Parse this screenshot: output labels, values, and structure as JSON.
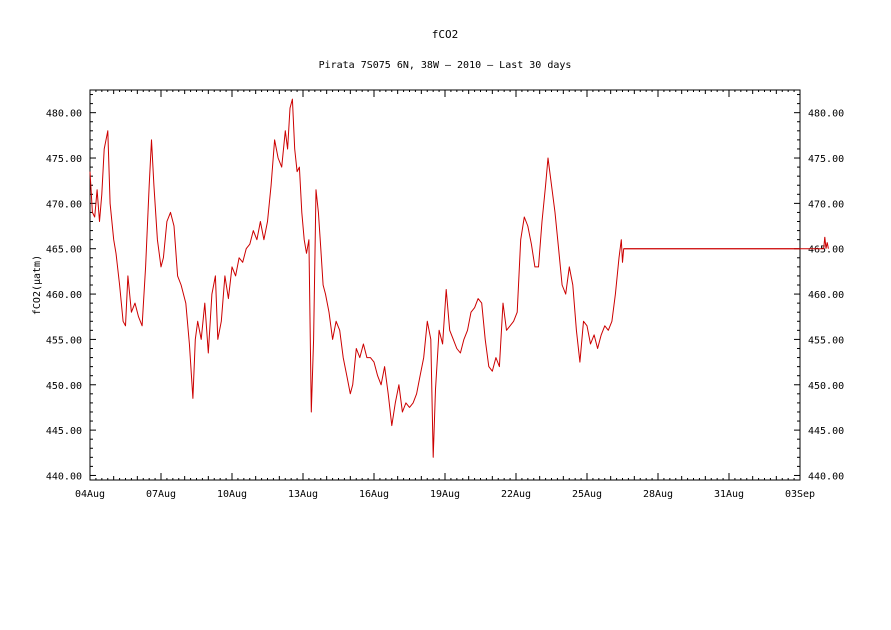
{
  "chart_data": {
    "type": "line",
    "title": "fCO2",
    "subtitle": "Pirata 7S075 6N, 38W – 2010 – Last 30 days",
    "ylabel": "fCO2(μatm)",
    "xlabel": "",
    "x_ticks": [
      "04Aug",
      "07Aug",
      "10Aug",
      "13Aug",
      "16Aug",
      "19Aug",
      "22Aug",
      "25Aug",
      "28Aug",
      "31Aug",
      "03Sep"
    ],
    "x_range_days": [
      0,
      30
    ],
    "y_ticks": [
      "440.00",
      "445.00",
      "450.00",
      "455.00",
      "460.00",
      "465.00",
      "470.00",
      "475.00",
      "480.00"
    ],
    "ylim": [
      439.5,
      482.5
    ],
    "line_color": "#cc0000",
    "series": [
      {
        "points": [
          [
            0.0,
            473.5
          ],
          [
            0.1,
            469.0
          ],
          [
            0.2,
            468.5
          ],
          [
            0.3,
            471.5
          ],
          [
            0.4,
            468.0
          ],
          [
            0.5,
            471.0
          ],
          [
            0.6,
            476.0
          ],
          [
            0.75,
            478.0
          ],
          [
            0.85,
            470.0
          ],
          [
            1.0,
            466.0
          ],
          [
            1.1,
            464.5
          ],
          [
            1.25,
            461.0
          ],
          [
            1.4,
            457.0
          ],
          [
            1.5,
            456.5
          ],
          [
            1.6,
            462.0
          ],
          [
            1.75,
            458.0
          ],
          [
            1.9,
            459.0
          ],
          [
            2.05,
            457.5
          ],
          [
            2.2,
            456.5
          ],
          [
            2.35,
            463.0
          ],
          [
            2.5,
            472.0
          ],
          [
            2.6,
            477.0
          ],
          [
            2.7,
            472.0
          ],
          [
            2.85,
            466.0
          ],
          [
            3.0,
            463.0
          ],
          [
            3.1,
            464.0
          ],
          [
            3.25,
            468.0
          ],
          [
            3.4,
            469.0
          ],
          [
            3.55,
            467.5
          ],
          [
            3.7,
            462.0
          ],
          [
            3.85,
            461.0
          ],
          [
            4.05,
            459.0
          ],
          [
            4.2,
            454.5
          ],
          [
            4.35,
            448.5
          ],
          [
            4.45,
            455.0
          ],
          [
            4.55,
            457.0
          ],
          [
            4.7,
            455.0
          ],
          [
            4.85,
            459.0
          ],
          [
            5.0,
            453.5
          ],
          [
            5.15,
            460.0
          ],
          [
            5.3,
            462.0
          ],
          [
            5.4,
            455.0
          ],
          [
            5.55,
            457.0
          ],
          [
            5.7,
            462.0
          ],
          [
            5.85,
            459.5
          ],
          [
            6.0,
            463.0
          ],
          [
            6.15,
            462.0
          ],
          [
            6.3,
            464.0
          ],
          [
            6.45,
            463.5
          ],
          [
            6.6,
            465.0
          ],
          [
            6.75,
            465.5
          ],
          [
            6.9,
            467.0
          ],
          [
            7.05,
            466.0
          ],
          [
            7.2,
            468.0
          ],
          [
            7.35,
            466.0
          ],
          [
            7.5,
            468.0
          ],
          [
            7.65,
            472.0
          ],
          [
            7.8,
            477.0
          ],
          [
            7.95,
            475.0
          ],
          [
            8.1,
            474.0
          ],
          [
            8.25,
            478.0
          ],
          [
            8.35,
            476.0
          ],
          [
            8.45,
            480.5
          ],
          [
            8.55,
            481.5
          ],
          [
            8.65,
            476.0
          ],
          [
            8.75,
            473.5
          ],
          [
            8.85,
            474.0
          ],
          [
            8.95,
            469.0
          ],
          [
            9.05,
            466.0
          ],
          [
            9.15,
            464.5
          ],
          [
            9.25,
            466.0
          ],
          [
            9.35,
            447.0
          ],
          [
            9.45,
            455.0
          ],
          [
            9.55,
            471.5
          ],
          [
            9.65,
            469.0
          ],
          [
            9.75,
            465.0
          ],
          [
            9.85,
            461.0
          ],
          [
            9.95,
            460.0
          ],
          [
            10.1,
            458.0
          ],
          [
            10.25,
            455.0
          ],
          [
            10.4,
            457.0
          ],
          [
            10.55,
            456.0
          ],
          [
            10.7,
            453.0
          ],
          [
            10.85,
            451.0
          ],
          [
            11.0,
            449.0
          ],
          [
            11.1,
            450.0
          ],
          [
            11.25,
            454.0
          ],
          [
            11.4,
            453.0
          ],
          [
            11.55,
            454.5
          ],
          [
            11.7,
            453.0
          ],
          [
            11.85,
            453.0
          ],
          [
            12.0,
            452.5
          ],
          [
            12.15,
            451.0
          ],
          [
            12.3,
            450.0
          ],
          [
            12.45,
            452.0
          ],
          [
            12.6,
            449.0
          ],
          [
            12.75,
            445.5
          ],
          [
            12.9,
            448.0
          ],
          [
            13.05,
            450.0
          ],
          [
            13.2,
            447.0
          ],
          [
            13.35,
            448.0
          ],
          [
            13.5,
            447.5
          ],
          [
            13.65,
            448.0
          ],
          [
            13.8,
            449.0
          ],
          [
            13.95,
            451.0
          ],
          [
            14.1,
            453.0
          ],
          [
            14.25,
            457.0
          ],
          [
            14.4,
            455.0
          ],
          [
            14.5,
            442.0
          ],
          [
            14.6,
            449.5
          ],
          [
            14.75,
            456.0
          ],
          [
            14.9,
            454.5
          ],
          [
            15.05,
            460.5
          ],
          [
            15.2,
            456.0
          ],
          [
            15.35,
            455.0
          ],
          [
            15.5,
            454.0
          ],
          [
            15.65,
            453.5
          ],
          [
            15.8,
            455.0
          ],
          [
            15.95,
            456.0
          ],
          [
            16.1,
            458.0
          ],
          [
            16.25,
            458.5
          ],
          [
            16.4,
            459.5
          ],
          [
            16.55,
            459.0
          ],
          [
            16.7,
            455.0
          ],
          [
            16.85,
            452.0
          ],
          [
            17.0,
            451.5
          ],
          [
            17.15,
            453.0
          ],
          [
            17.3,
            452.0
          ],
          [
            17.45,
            459.0
          ],
          [
            17.6,
            456.0
          ],
          [
            17.75,
            456.5
          ],
          [
            17.9,
            457.0
          ],
          [
            18.05,
            458.0
          ],
          [
            18.2,
            466.0
          ],
          [
            18.35,
            468.5
          ],
          [
            18.5,
            467.5
          ],
          [
            18.65,
            465.5
          ],
          [
            18.8,
            463.0
          ],
          [
            18.95,
            463.0
          ],
          [
            19.1,
            468.0
          ],
          [
            19.25,
            472.0
          ],
          [
            19.35,
            475.0
          ],
          [
            19.5,
            472.0
          ],
          [
            19.65,
            469.0
          ],
          [
            19.8,
            465.0
          ],
          [
            19.95,
            461.0
          ],
          [
            20.1,
            460.0
          ],
          [
            20.25,
            463.0
          ],
          [
            20.4,
            461.0
          ],
          [
            20.55,
            456.0
          ],
          [
            20.7,
            452.5
          ],
          [
            20.85,
            457.0
          ],
          [
            21.0,
            456.5
          ],
          [
            21.15,
            454.5
          ],
          [
            21.3,
            455.5
          ],
          [
            21.45,
            454.0
          ],
          [
            21.6,
            455.5
          ],
          [
            21.75,
            456.5
          ],
          [
            21.9,
            456.0
          ],
          [
            22.05,
            457.0
          ],
          [
            22.2,
            460.0
          ],
          [
            22.35,
            464.0
          ],
          [
            22.45,
            466.0
          ],
          [
            22.5,
            463.5
          ],
          [
            22.55,
            465.0
          ],
          [
            30.0,
            465.0
          ]
        ]
      }
    ],
    "spikes": [
      [
        22.55,
        465.0
      ],
      [
        31.0,
        465.0
      ],
      [
        31.05,
        466.3
      ],
      [
        31.1,
        465.0
      ],
      [
        31.15,
        465.7
      ],
      [
        31.2,
        465.0
      ]
    ]
  }
}
